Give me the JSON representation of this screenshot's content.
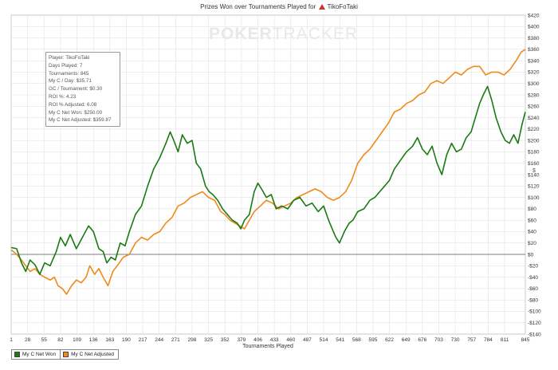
{
  "header": {
    "title_prefix": "Prizes Won over Tournaments Played for",
    "player_name": "TikoFoTaki"
  },
  "watermark": {
    "bold": "POKER",
    "light": "TRACKER"
  },
  "stats": [
    "Player: TikoFoTaki",
    "Days Played: 7",
    "Tournaments: 845",
    "My C / Day: $35.71",
    "GC / Tournament: $0.30",
    "ROI %: 4.23",
    "ROI % Adjusted: 6.08",
    "My C Net Won: $250.00",
    "My C Net Adjusted: $359.87"
  ],
  "y_unit_glyph": "$",
  "colors": {
    "net_won": "#1a7a12",
    "net_adjusted": "#f08a1c",
    "grid": "#e3e3e3",
    "zero_line": "#555555",
    "title_flag": "#d0362b"
  },
  "chart_data": {
    "type": "line",
    "title": "Prizes Won over Tournaments Played for TikoFoTaki",
    "xlabel": "Tournaments Played",
    "ylabel": "",
    "xlim": [
      1,
      845
    ],
    "ylim": [
      -140,
      420
    ],
    "x_ticks": [
      1,
      28,
      55,
      82,
      109,
      136,
      163,
      190,
      217,
      244,
      271,
      298,
      325,
      352,
      379,
      406,
      433,
      460,
      487,
      514,
      541,
      568,
      595,
      622,
      649,
      676,
      703,
      730,
      757,
      784,
      811,
      845
    ],
    "y_ticks": [
      -140,
      -120,
      -100,
      -80,
      -60,
      -40,
      -20,
      0,
      20,
      40,
      60,
      80,
      100,
      120,
      140,
      160,
      180,
      200,
      220,
      240,
      260,
      280,
      300,
      320,
      340,
      360,
      380,
      400,
      420
    ],
    "y_tick_labels": [
      "-$140",
      "-$120",
      "-$100",
      "-$80",
      "-$60",
      "-$40",
      "-$20",
      "$0",
      "$20",
      "$40",
      "$60",
      "$80",
      "$100",
      "$120",
      "$140",
      "$160",
      "$180",
      "$200",
      "$220",
      "$240",
      "$260",
      "$280",
      "$300",
      "$320",
      "$340",
      "$360",
      "$380",
      "$400",
      "$420"
    ],
    "grid": true,
    "legend_position": "bottom-left",
    "series": [
      {
        "name": "My C Net Won",
        "color": "#1a7a12",
        "x": [
          1,
          10,
          18,
          25,
          32,
          40,
          48,
          56,
          65,
          75,
          82,
          90,
          98,
          108,
          118,
          128,
          136,
          145,
          152,
          158,
          165,
          172,
          180,
          188,
          195,
          205,
          215,
          225,
          235,
          245,
          255,
          262,
          268,
          275,
          282,
          290,
          298,
          305,
          312,
          320,
          326,
          332,
          340,
          348,
          356,
          364,
          372,
          378,
          384,
          392,
          400,
          406,
          412,
          420,
          428,
          436,
          445,
          455,
          465,
          475,
          485,
          495,
          505,
          514,
          522,
          528,
          534,
          540,
          548,
          556,
          562,
          570,
          580,
          590,
          598,
          606,
          614,
          622,
          630,
          640,
          650,
          660,
          668,
          676,
          684,
          692,
          700,
          708,
          716,
          724,
          732,
          740,
          748,
          756,
          763,
          770,
          776,
          783,
          790,
          797,
          805,
          812,
          819,
          826,
          833,
          840,
          845
        ],
        "y": [
          12,
          10,
          -15,
          -30,
          -10,
          -18,
          -35,
          -15,
          -20,
          5,
          30,
          15,
          35,
          10,
          30,
          50,
          40,
          10,
          5,
          -15,
          -5,
          -10,
          20,
          15,
          40,
          70,
          85,
          120,
          150,
          170,
          195,
          215,
          200,
          180,
          210,
          195,
          200,
          160,
          150,
          120,
          110,
          105,
          95,
          80,
          70,
          60,
          55,
          45,
          60,
          70,
          110,
          125,
          115,
          100,
          105,
          80,
          85,
          80,
          95,
          100,
          85,
          90,
          75,
          85,
          60,
          45,
          30,
          20,
          40,
          55,
          60,
          75,
          80,
          95,
          100,
          110,
          120,
          130,
          150,
          165,
          180,
          190,
          205,
          185,
          175,
          190,
          160,
          140,
          175,
          195,
          180,
          185,
          205,
          215,
          240,
          265,
          280,
          295,
          270,
          240,
          215,
          200,
          195,
          210,
          195,
          230,
          250
        ]
      },
      {
        "name": "My C Net Adjusted",
        "color": "#f08a1c",
        "x": [
          1,
          10,
          18,
          25,
          32,
          40,
          48,
          56,
          65,
          72,
          78,
          85,
          92,
          100,
          108,
          116,
          124,
          130,
          138,
          145,
          152,
          160,
          168,
          175,
          185,
          195,
          205,
          215,
          225,
          235,
          245,
          255,
          265,
          275,
          285,
          295,
          305,
          315,
          325,
          335,
          345,
          352,
          360,
          368,
          376,
          384,
          392,
          400,
          410,
          420,
          430,
          440,
          450,
          460,
          470,
          480,
          490,
          500,
          510,
          520,
          530,
          540,
          550,
          560,
          570,
          580,
          590,
          600,
          610,
          620,
          630,
          640,
          650,
          660,
          670,
          680,
          690,
          700,
          710,
          720,
          730,
          740,
          750,
          760,
          770,
          780,
          790,
          800,
          810,
          820,
          830,
          838,
          845
        ],
        "y": [
          8,
          0,
          -10,
          -20,
          -30,
          -25,
          -35,
          -40,
          -45,
          -40,
          -55,
          -60,
          -70,
          -55,
          -45,
          -50,
          -40,
          -20,
          -35,
          -25,
          -40,
          -55,
          -30,
          -20,
          -5,
          0,
          20,
          30,
          25,
          35,
          40,
          55,
          65,
          85,
          90,
          100,
          105,
          110,
          100,
          95,
          75,
          70,
          60,
          55,
          50,
          45,
          60,
          75,
          85,
          95,
          90,
          80,
          85,
          90,
          100,
          105,
          110,
          115,
          110,
          100,
          95,
          100,
          110,
          130,
          160,
          175,
          185,
          200,
          215,
          230,
          250,
          255,
          265,
          270,
          280,
          285,
          300,
          305,
          300,
          310,
          320,
          315,
          325,
          330,
          330,
          315,
          320,
          320,
          315,
          325,
          340,
          355,
          360
        ]
      }
    ]
  }
}
